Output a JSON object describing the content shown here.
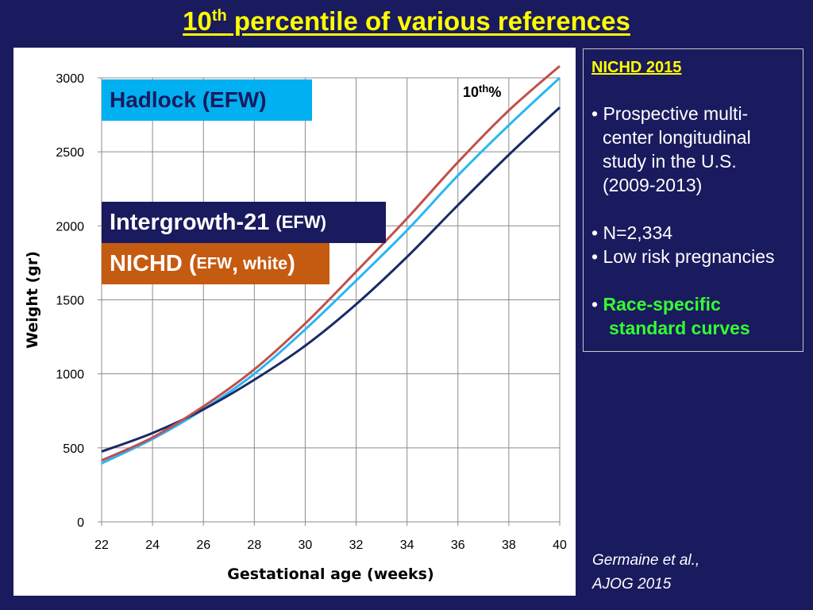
{
  "title": {
    "text": "10",
    "sup": "th",
    "rest": " percentile of various references"
  },
  "legend_boxes": {
    "hadlock": "Hadlock (EFW)",
    "intergrowth_main": "Intergrowth-21",
    "intergrowth_small": "(EFW)",
    "nichd_main": "NICHD (",
    "nichd_efw": "EFW",
    "nichd_comma": ",",
    "nichd_white": "white",
    "nichd_close": ")"
  },
  "info": {
    "heading": "NICHD 2015",
    "bullet1_lines": [
      "• Prospective multi-",
      "center longitudinal",
      "study in the U.S.",
      "(2009-2013)"
    ],
    "bullet2": "• N=2,334",
    "bullet3": "• Low risk pregnancies",
    "bullet4_dot": "• ",
    "bullet4_lines": [
      "Race-specific",
      "standard curves"
    ]
  },
  "citation": {
    "line1": "Germaine et al.,",
    "line2": "AJOG 2015"
  },
  "colors": {
    "background": "#1a1a5e",
    "hadlock": "#29b6f6",
    "intergrowth": "#1a2a66",
    "nichd": "#c0504d",
    "title": "#ffff00",
    "green": "#33ff33"
  },
  "chart_data": {
    "type": "line",
    "title": "",
    "xlabel": "Gestational age (weeks)",
    "ylabel": "Weight (gr)",
    "xlim": [
      22,
      40
    ],
    "ylim": [
      0,
      3000
    ],
    "x_ticks": [
      22,
      24,
      26,
      28,
      30,
      32,
      34,
      36,
      38,
      40
    ],
    "y_ticks": [
      0,
      500,
      1000,
      1500,
      2000,
      2500,
      3000
    ],
    "grid": true,
    "annotation": {
      "text": "10",
      "sup": "th",
      "suffix": "%"
    },
    "x": [
      22,
      24,
      26,
      28,
      30,
      32,
      34,
      36,
      38,
      40
    ],
    "series": [
      {
        "name": "Hadlock (EFW)",
        "color": "#29b6f6",
        "values": [
          395,
          560,
          760,
          1000,
          1300,
          1630,
          1970,
          2340,
          2680,
          3000
        ]
      },
      {
        "name": "Intergrowth-21 (EFW)",
        "color": "#1a2a66",
        "values": [
          475,
          600,
          760,
          960,
          1190,
          1470,
          1790,
          2140,
          2480,
          2800
        ]
      },
      {
        "name": "NICHD (EFW, white)",
        "color": "#c0504d",
        "values": [
          415,
          570,
          780,
          1030,
          1340,
          1690,
          2050,
          2430,
          2780,
          3080
        ]
      }
    ]
  }
}
